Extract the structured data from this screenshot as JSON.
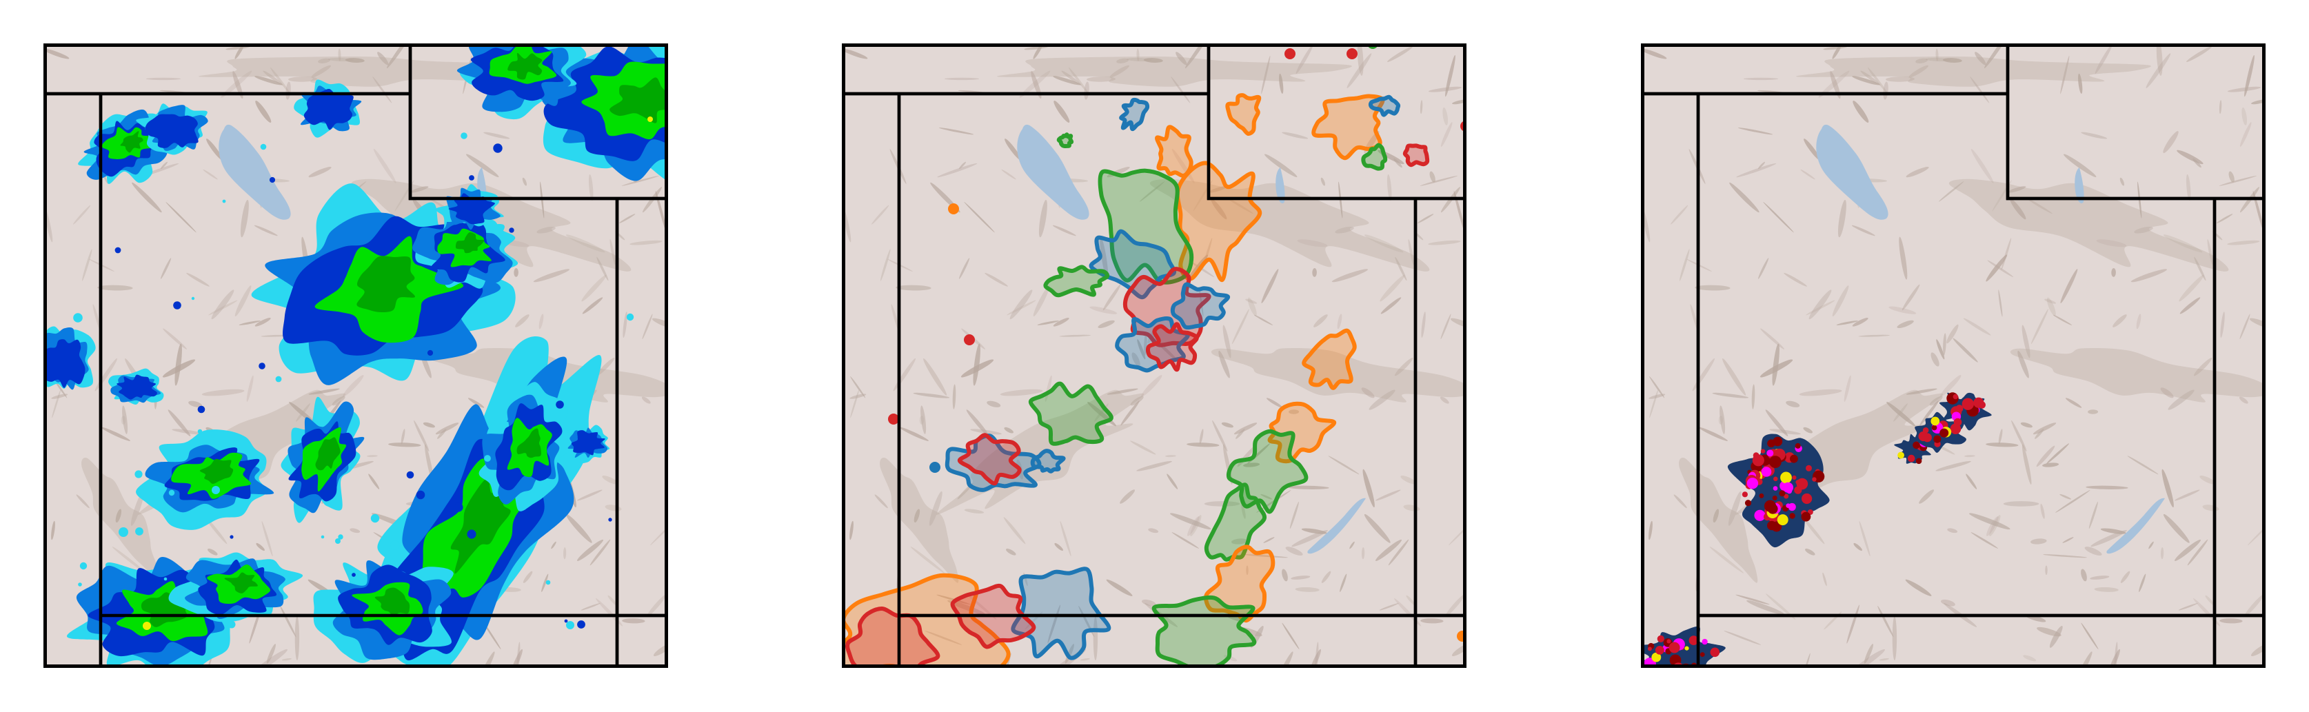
{
  "figure": {
    "panel_count": 3,
    "basemap": {
      "land_color": "#e2d8d5",
      "relief_color": "#b8a89f",
      "water_color": "#a7c2dc",
      "boundary_color": "#000000"
    }
  },
  "panels": [
    {
      "id": "reflectivity",
      "legend": "",
      "colors": {
        "level_1": "#2bd8f0",
        "level_2": "#0a7be0",
        "level_3": "#0033cc",
        "level_4": "#00e000",
        "level_5": "#00a800",
        "level_6": "#f0f000"
      }
    },
    {
      "id": "probability-contours",
      "legend": "",
      "colors": {
        "orange": "#ff7f0e",
        "green": "#2ca02c",
        "blue": "#1f77b4",
        "red": "#d62728"
      }
    },
    {
      "id": "storm-objects",
      "legend": "",
      "colors": {
        "navy": "#1b3a6b",
        "dark-red": "#8b0000",
        "red": "#d0162a",
        "magenta": "#ff00ff",
        "yellow": "#f2e600"
      }
    }
  ]
}
